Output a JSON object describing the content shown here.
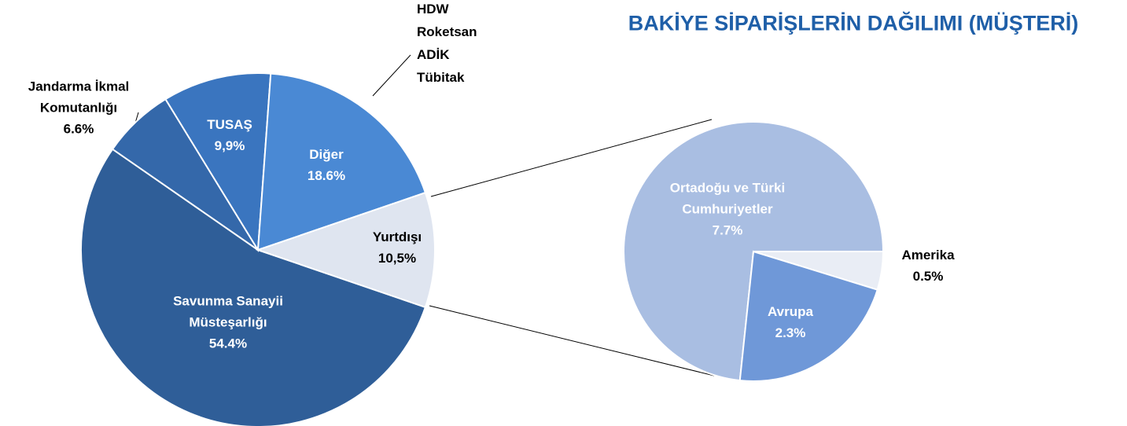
{
  "chart_data": [
    {
      "type": "pie",
      "title": "BAKİYE SİPARİŞLERİN DAĞILIMI (MÜŞTERİ)",
      "categories": [
        "Savunma Sanayii Müsteşarlığı",
        "Jandarma  İkmal Komutanlığı",
        "TUSAŞ",
        "Diğer",
        "Yurtdışı"
      ],
      "values": [
        54.4,
        6.6,
        9.9,
        18.6,
        10.5
      ],
      "value_labels": [
        "54.4%",
        "6.6%",
        "9,9%",
        "18.6%",
        "10,5%"
      ],
      "colors": [
        "#2f5e98",
        "#3468aa",
        "#3a75bf",
        "#4a89d4",
        "#dfe5f0"
      ],
      "annotation": [
        "HDW",
        "Roketsan",
        "ADİK",
        "Tübitak"
      ]
    },
    {
      "type": "pie",
      "categories": [
        "Ortadoğu  ve Türki Cumhuriyetler",
        "Amerika",
        "Avrupa"
      ],
      "values": [
        7.7,
        0.5,
        2.3
      ],
      "value_labels": [
        "7.7%",
        "0.5%",
        "2.3%"
      ],
      "colors": [
        "#a9bee2",
        "#e9edf5",
        "#6f98d8"
      ]
    }
  ]
}
